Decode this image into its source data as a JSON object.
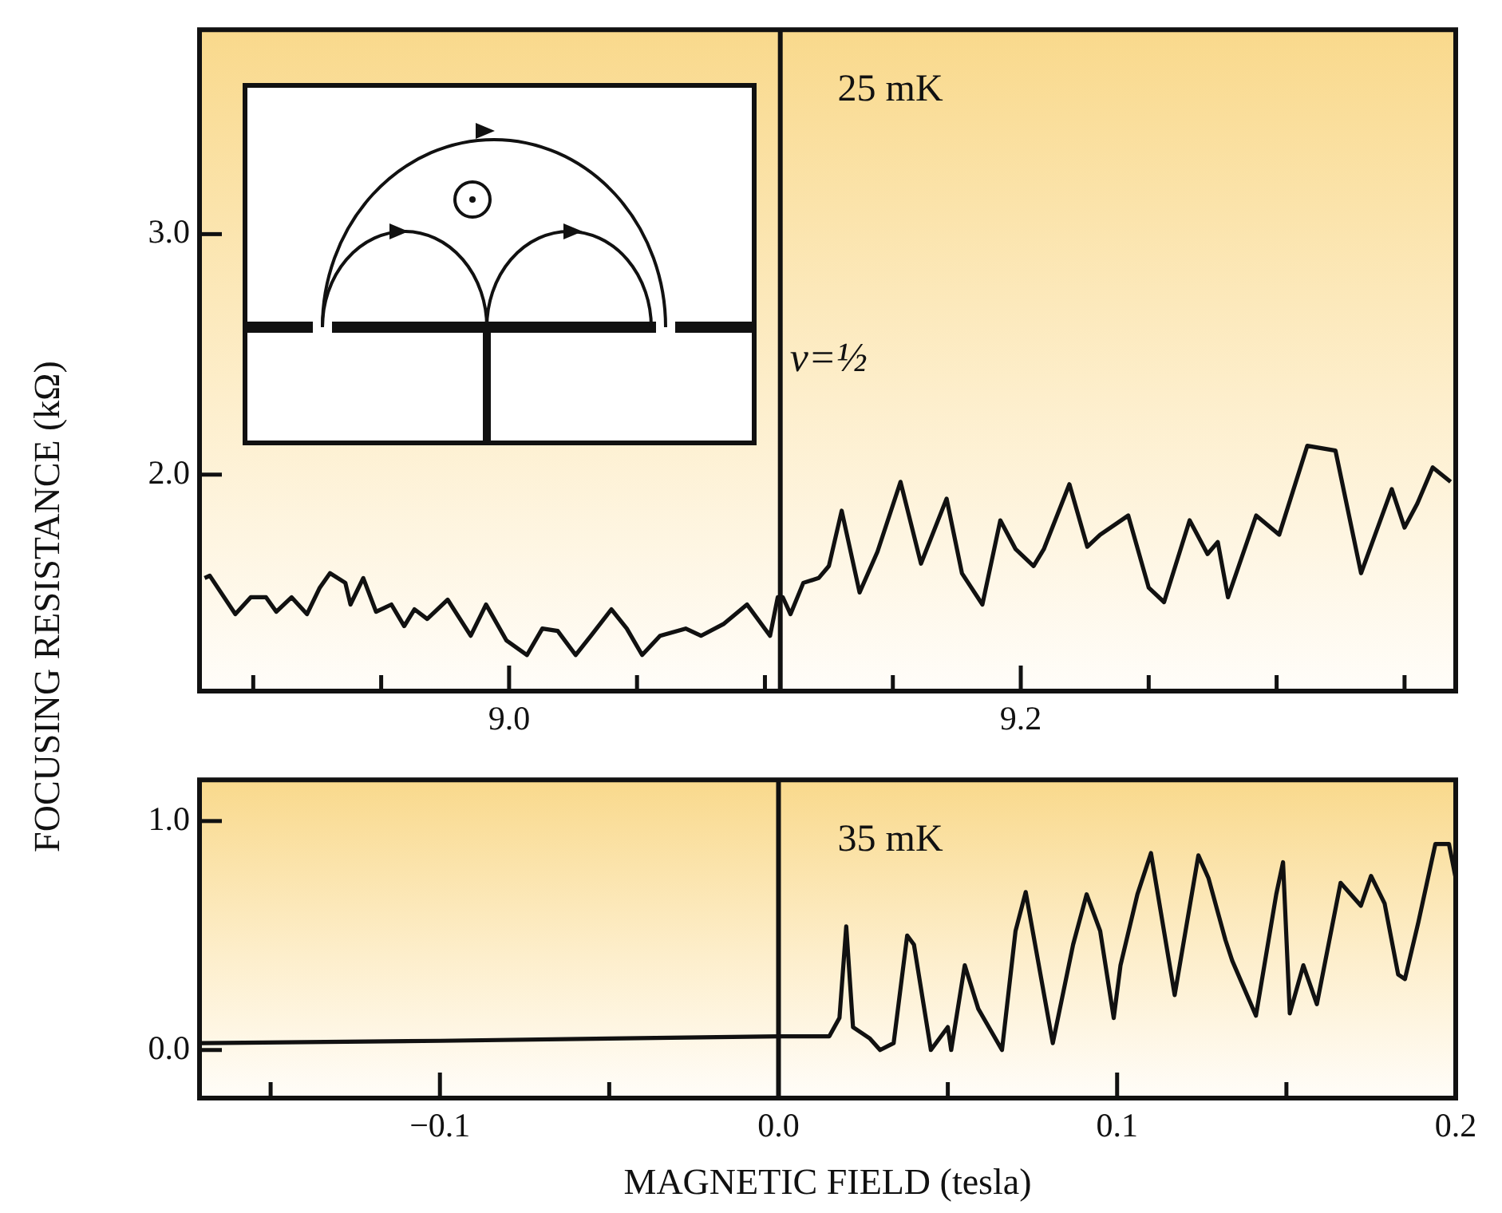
{
  "chart_data": [
    {
      "type": "line",
      "ylabel": "FOCUSING RESISTANCE (kΩ)",
      "annotations": [
        "25 mK"
      ],
      "xlim": [
        8.879,
        9.37
      ],
      "ylim": [
        1.1,
        3.85
      ],
      "xticks": [
        {
          "value": 8.9,
          "label": null
        },
        {
          "value": 8.95,
          "label": null
        },
        {
          "value": 9,
          "label": "9.0"
        },
        {
          "value": 9.05,
          "label": null
        },
        {
          "value": 9.1,
          "label": null
        },
        {
          "value": 9.15,
          "label": null
        },
        9.2,
        {
          "value": 9.25,
          "label": null
        },
        {
          "value": 9.3,
          "label": null
        },
        {
          "value": 9.35,
          "label": null
        }
      ],
      "yticks": [
        {
          "value": 2,
          "label": "2.0"
        },
        {
          "value": 3,
          "label": "3.0"
        }
      ],
      "ref_lines": [
        {
          "axis": "x",
          "value": 9.106,
          "label": "ν=½",
          "color": "#111111"
        }
      ],
      "series": [
        {
          "color": "#111111",
          "x": [
            8.881,
            8.883,
            8.893,
            8.899,
            8.905,
            8.909,
            8.915,
            8.921,
            8.926,
            8.93,
            8.936,
            8.938,
            8.943,
            8.948,
            8.954,
            8.959,
            8.963,
            8.968,
            8.976,
            8.985,
            8.991,
            8.999,
            9.007,
            9.013,
            9.019,
            9.026,
            9.032,
            9.04,
            9.046,
            9.052,
            9.059,
            9.069,
            9.075,
            9.084,
            9.093,
            9.102,
            9.105,
            9.107,
            9.11,
            9.115,
            9.121,
            9.125,
            9.13,
            9.137,
            9.144,
            9.153,
            9.161,
            9.171,
            9.177,
            9.185,
            9.192,
            9.198,
            9.205,
            9.209,
            9.219,
            9.226,
            9.231,
            9.242,
            9.25,
            9.256,
            9.266,
            9.273,
            9.277,
            9.281,
            9.292,
            9.301,
            9.312,
            9.323,
            9.333,
            9.345,
            9.35,
            9.355,
            9.361,
            9.368
          ],
          "values": [
            1.57,
            1.58,
            1.42,
            1.49,
            1.49,
            1.43,
            1.49,
            1.42,
            1.53,
            1.59,
            1.55,
            1.46,
            1.57,
            1.43,
            1.46,
            1.37,
            1.44,
            1.4,
            1.48,
            1.33,
            1.46,
            1.31,
            1.25,
            1.36,
            1.35,
            1.25,
            1.33,
            1.44,
            1.36,
            1.25,
            1.33,
            1.36,
            1.33,
            1.38,
            1.46,
            1.33,
            1.49,
            1.49,
            1.42,
            1.55,
            1.57,
            1.62,
            1.85,
            1.51,
            1.68,
            1.97,
            1.63,
            1.9,
            1.59,
            1.46,
            1.81,
            1.69,
            1.62,
            1.69,
            1.96,
            1.7,
            1.75,
            1.83,
            1.53,
            1.47,
            1.81,
            1.67,
            1.72,
            1.49,
            1.83,
            1.75,
            2.12,
            2.1,
            1.59,
            1.94,
            1.78,
            1.88,
            2.03,
            1.97
          ]
        }
      ]
    },
    {
      "type": "line",
      "xlabel": "MAGNETIC FIELD (tesla)",
      "annotations": [
        "35 mK"
      ],
      "xlim": [
        -0.171,
        0.2
      ],
      "ylim": [
        -0.21,
        1.18
      ],
      "xticks": [
        {
          "value": -0.15,
          "label": null
        },
        {
          "value": -0.1,
          "label": "−0.1"
        },
        {
          "value": -0.05,
          "label": null
        },
        {
          "value": 0,
          "label": "0.0"
        },
        {
          "value": 0.05,
          "label": null
        },
        0.1,
        {
          "value": 0.15,
          "label": null
        },
        0.2
      ],
      "yticks": [
        {
          "value": 0,
          "label": "0.0"
        },
        {
          "value": 1,
          "label": "1.0"
        }
      ],
      "ref_lines": [
        {
          "axis": "x",
          "value": 0,
          "label": null,
          "color": "#111111"
        }
      ],
      "series": [
        {
          "color": "#111111",
          "x": [
            -0.171,
            -0.1,
            -0.05,
            0,
            0.015,
            0.018,
            0.02,
            0.022,
            0.027,
            0.03,
            0.034,
            0.038,
            0.04,
            0.045,
            0.05,
            0.051,
            0.055,
            0.059,
            0.066,
            0.07,
            0.073,
            0.081,
            0.087,
            0.091,
            0.095,
            0.099,
            0.101,
            0.106,
            0.11,
            0.117,
            0.124,
            0.127,
            0.132,
            0.134,
            0.141,
            0.147,
            0.149,
            0.151,
            0.155,
            0.159,
            0.166,
            0.172,
            0.175,
            0.179,
            0.183,
            0.185,
            0.189,
            0.194,
            0.198,
            0.2
          ],
          "values": [
            0.03,
            0.04,
            0.05,
            0.06,
            0.06,
            0.14,
            0.54,
            0.1,
            0.05,
            0,
            0.03,
            0.5,
            0.46,
            0,
            0.1,
            0,
            0.37,
            0.18,
            0,
            0.52,
            0.69,
            0.03,
            0.46,
            0.68,
            0.52,
            0.14,
            0.37,
            0.68,
            0.86,
            0.24,
            0.85,
            0.75,
            0.48,
            0.39,
            0.15,
            0.68,
            0.82,
            0.16,
            0.37,
            0.2,
            0.73,
            0.63,
            0.76,
            0.64,
            0.33,
            0.31,
            0.56,
            0.9,
            0.9,
            0.75
          ]
        }
      ]
    }
  ]
}
